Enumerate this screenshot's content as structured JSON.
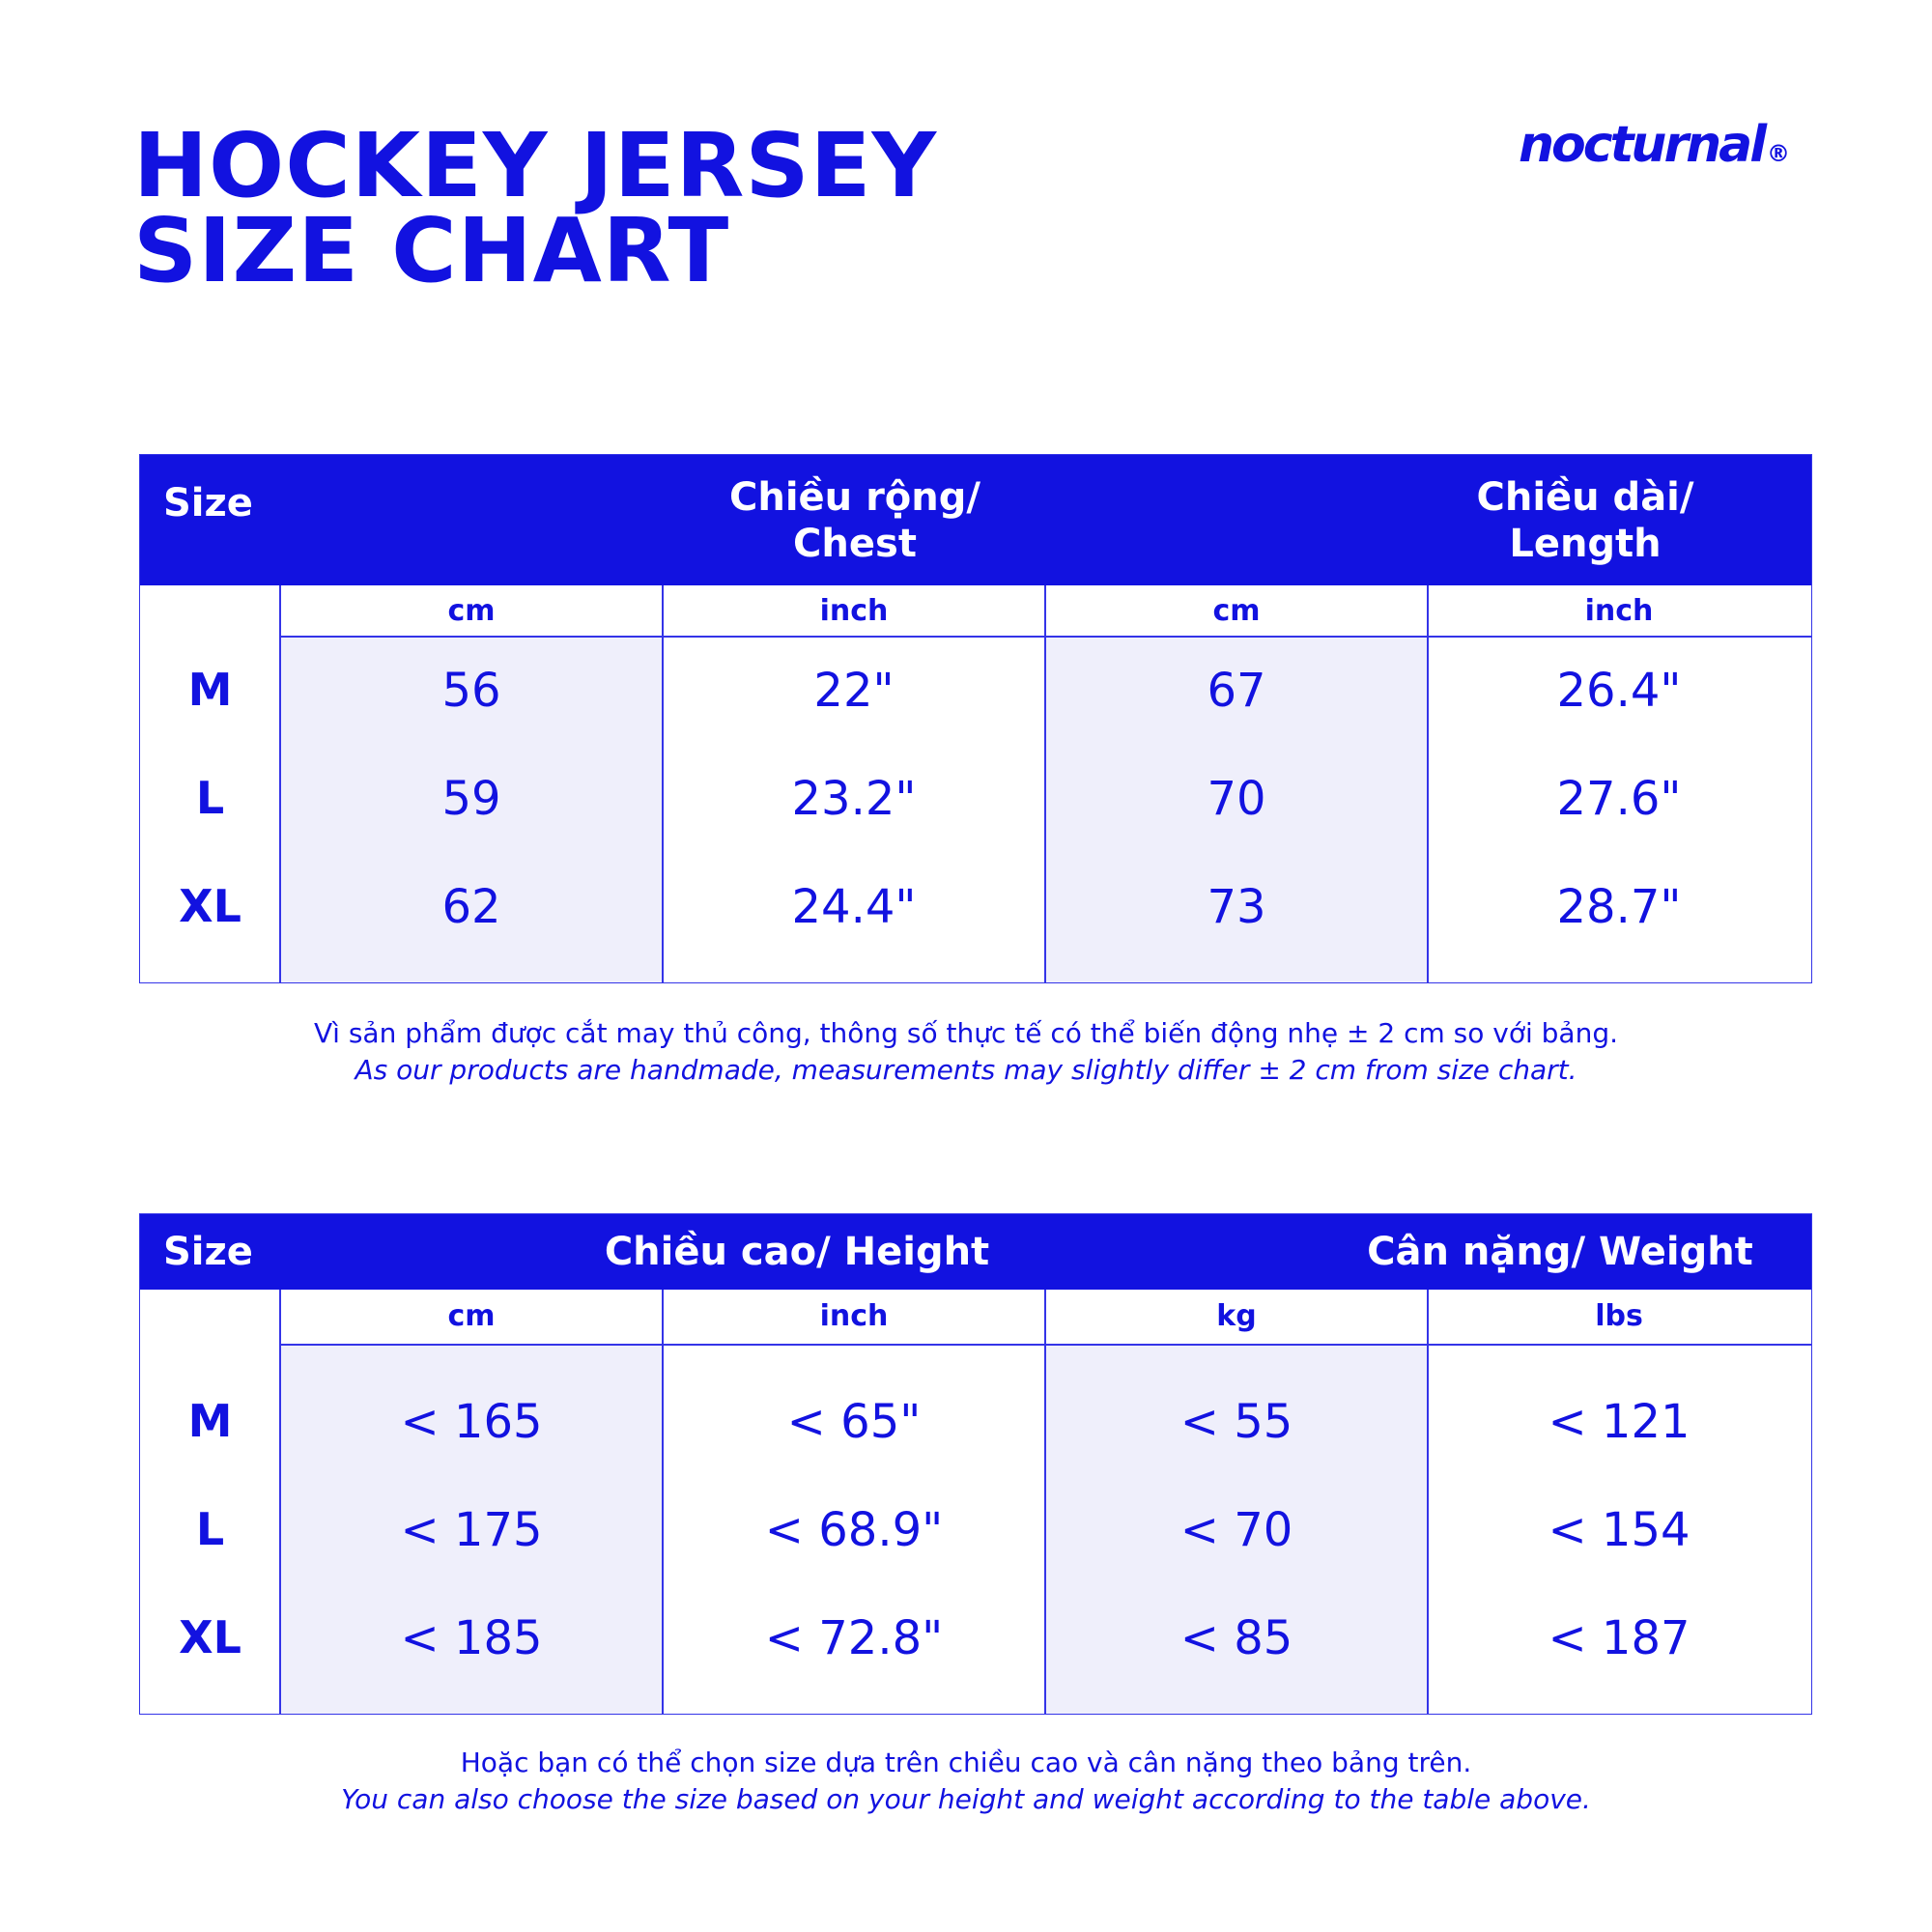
{
  "title": {
    "line1": "HOCKEY JERSEY",
    "line2": "SIZE CHART"
  },
  "brand": {
    "name": "nocturnal",
    "mark": "®"
  },
  "colors": {
    "accent": "#1212e0",
    "shade": "#efeffb",
    "background": "#ffffff"
  },
  "table1": {
    "size_label": "Size",
    "group1": {
      "line1": "Chiều rộng/",
      "line2": "Chest"
    },
    "group2": {
      "line1": "Chiều dài/",
      "line2": "Length"
    },
    "units": [
      "cm",
      "inch",
      "cm",
      "inch"
    ],
    "rows": [
      {
        "size": "M",
        "values": [
          "56",
          "22\"",
          "67",
          "26.4\""
        ]
      },
      {
        "size": "L",
        "values": [
          "59",
          "23.2\"",
          "70",
          "27.6\""
        ]
      },
      {
        "size": "XL",
        "values": [
          "62",
          "24.4\"",
          "73",
          "28.7\""
        ]
      }
    ],
    "note_vi": "Vì sản phẩm được cắt may thủ công, thông số thực tế có thể biến động nhẹ ± 2 cm so với bảng.",
    "note_en": "As our products are handmade, measurements may slightly differ ± 2 cm from size chart."
  },
  "table2": {
    "size_label": "Size",
    "group1": "Chiều cao/ Height",
    "group2": "Cân nặng/ Weight",
    "units": [
      "cm",
      "inch",
      "kg",
      "lbs"
    ],
    "rows": [
      {
        "size": "M",
        "values": [
          "< 165",
          "< 65\"",
          "< 55",
          "< 121"
        ]
      },
      {
        "size": "L",
        "values": [
          "< 175",
          "< 68.9\"",
          "< 70",
          "< 154"
        ]
      },
      {
        "size": "XL",
        "values": [
          "< 185",
          "< 72.8\"",
          "< 85",
          "< 187"
        ]
      }
    ],
    "note_vi": "Hoặc bạn có thể chọn size dựa trên chiều cao và cân nặng theo bảng trên.",
    "note_en": "You can also choose the size based on your height and weight according to the table above."
  }
}
